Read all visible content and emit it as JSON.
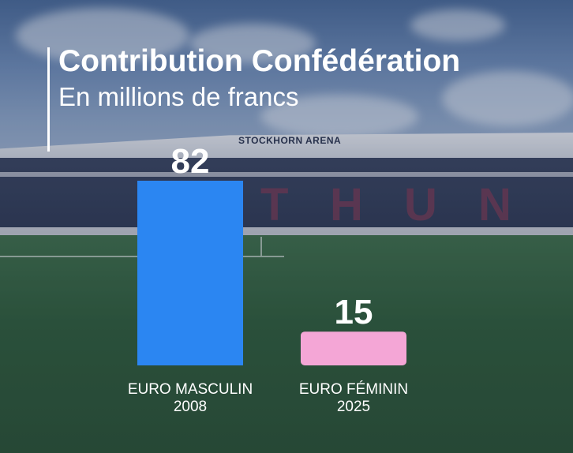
{
  "header": {
    "title": "Contribution Confédération",
    "subtitle": "En millions de francs"
  },
  "background": {
    "arena_sign": "STOCKHORN ARENA"
  },
  "chart_data": {
    "type": "bar",
    "title": "Contribution Confédération",
    "subtitle": "En millions de francs",
    "categories": [
      [
        "EURO MASCULIN",
        "2008"
      ],
      [
        "EURO FÉMININ",
        "2025"
      ]
    ],
    "values": [
      82,
      15
    ],
    "bar_colors": [
      "#2b86f2",
      "#f4a6d6"
    ],
    "ylim": [
      0,
      82
    ],
    "grid": false,
    "legend": "none"
  },
  "colors": {
    "text": "#ffffff",
    "bar_men": "#2b86f2",
    "bar_women": "#f4a6d6"
  }
}
